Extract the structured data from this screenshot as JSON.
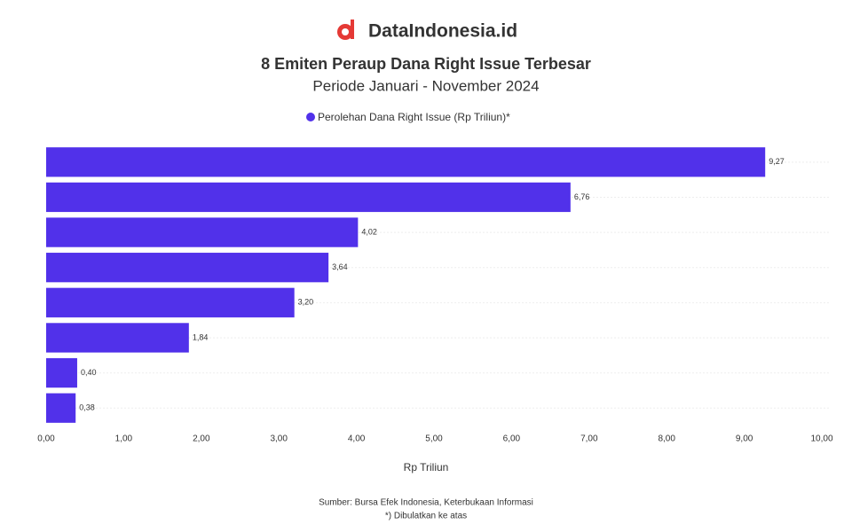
{
  "brand": "DataIndonesia.id",
  "chart_data": {
    "type": "bar",
    "orientation": "horizontal",
    "title": "8 Emiten Peraup Dana Right Issue Terbesar",
    "subtitle": "Periode Januari - November 2024",
    "categories": [
      null,
      null,
      null,
      null,
      null,
      null,
      null,
      null
    ],
    "series": [
      {
        "name": "Perolehan Dana Right Issue (Rp Triliun)*",
        "color": "#5131ea",
        "values": [
          9.27,
          6.76,
          4.02,
          3.64,
          3.2,
          1.84,
          0.4,
          0.38
        ],
        "value_labels": [
          "9,27",
          "6,76",
          "4,02",
          "3,64",
          "3,20",
          "1,84",
          "0,40",
          "0,38"
        ]
      }
    ],
    "xlim": [
      0,
      10
    ],
    "xticks": [
      {
        "value": 0,
        "label": "0,00"
      },
      {
        "value": 1,
        "label": "1,00"
      },
      {
        "value": 2,
        "label": "2,00"
      },
      {
        "value": 3,
        "label": "3,00"
      },
      {
        "value": 4,
        "label": "4,00"
      },
      {
        "value": 5,
        "label": "5,00"
      },
      {
        "value": 6,
        "label": "6,00"
      },
      {
        "value": 7,
        "label": "7,00"
      },
      {
        "value": 8,
        "label": "8,00"
      },
      {
        "value": 9,
        "label": "9,00"
      },
      {
        "value": 10,
        "label": "10,00"
      }
    ],
    "xlabel": "Rp Triliun",
    "grid": true,
    "legend": "top",
    "source": "Sumber: Bursa Efek Indonesia, Keterbukaan Informasi",
    "note": "*) Dibulatkan ke atas"
  }
}
